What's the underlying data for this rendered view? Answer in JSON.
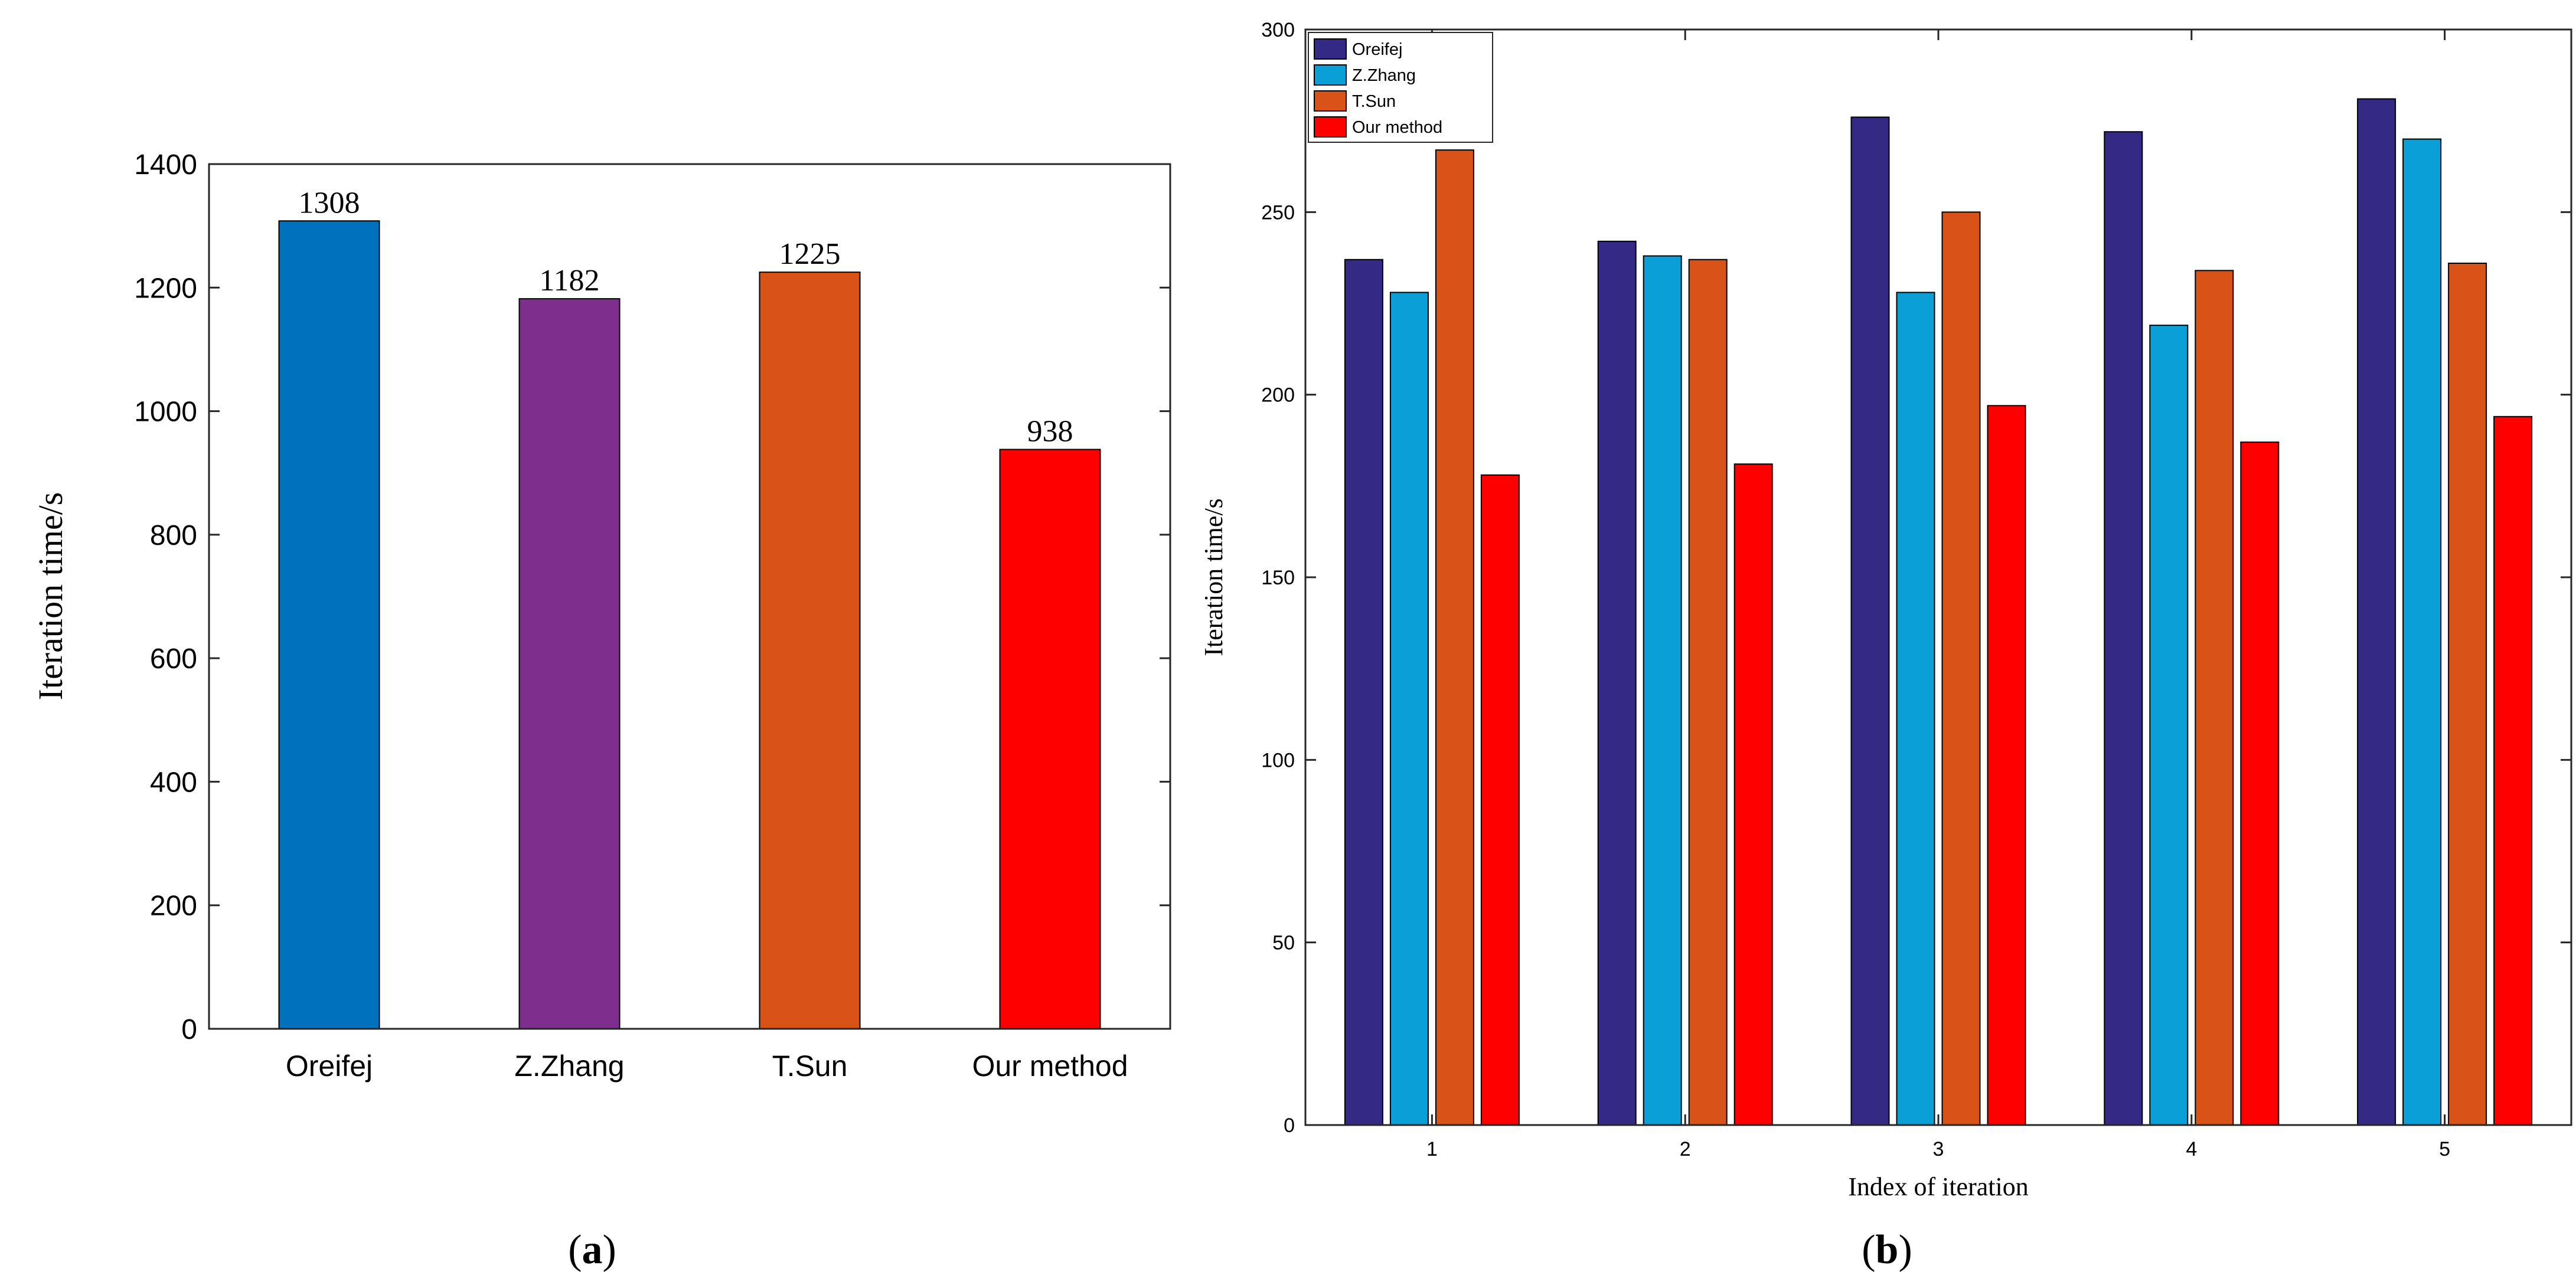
{
  "chart_data": [
    {
      "panel_label": "(a)",
      "type": "bar",
      "title": "",
      "xlabel": "",
      "ylabel": "Iteration time/s",
      "ylim": [
        0,
        1400
      ],
      "yticks": [
        0,
        200,
        400,
        600,
        800,
        1000,
        1200,
        1400
      ],
      "grid": false,
      "categories": [
        "Oreifej",
        "Z.Zhang",
        "T.Sun",
        "Our method"
      ],
      "values": [
        1308,
        1182,
        1225,
        938
      ],
      "data_labels": [
        "1308",
        "1182",
        "1225",
        "938"
      ],
      "colors": [
        "#0072bd",
        "#7e2f8e",
        "#d95319",
        "#ff0000"
      ]
    },
    {
      "panel_label": "(b)",
      "type": "bar",
      "title": "",
      "xlabel": "Index of iteration",
      "ylabel": "Iteration time/s",
      "ylim": [
        0,
        300
      ],
      "yticks": [
        0,
        50,
        100,
        150,
        200,
        250,
        300
      ],
      "grid": false,
      "legend_position": "top-left",
      "categories": [
        "1",
        "2",
        "3",
        "4",
        "5"
      ],
      "series": [
        {
          "name": "Oreifej",
          "color": "#342a85",
          "values": [
            237,
            242,
            276,
            272,
            281
          ]
        },
        {
          "name": "Z.Zhang",
          "color": "#0a9fd6",
          "values": [
            228,
            238,
            228,
            219,
            270
          ]
        },
        {
          "name": "T.Sun",
          "color": "#d95319",
          "values": [
            267,
            237,
            250,
            234,
            236
          ]
        },
        {
          "name": "Our method",
          "color": "#ff0000",
          "values": [
            178,
            181,
            197,
            187,
            194
          ]
        }
      ]
    }
  ]
}
